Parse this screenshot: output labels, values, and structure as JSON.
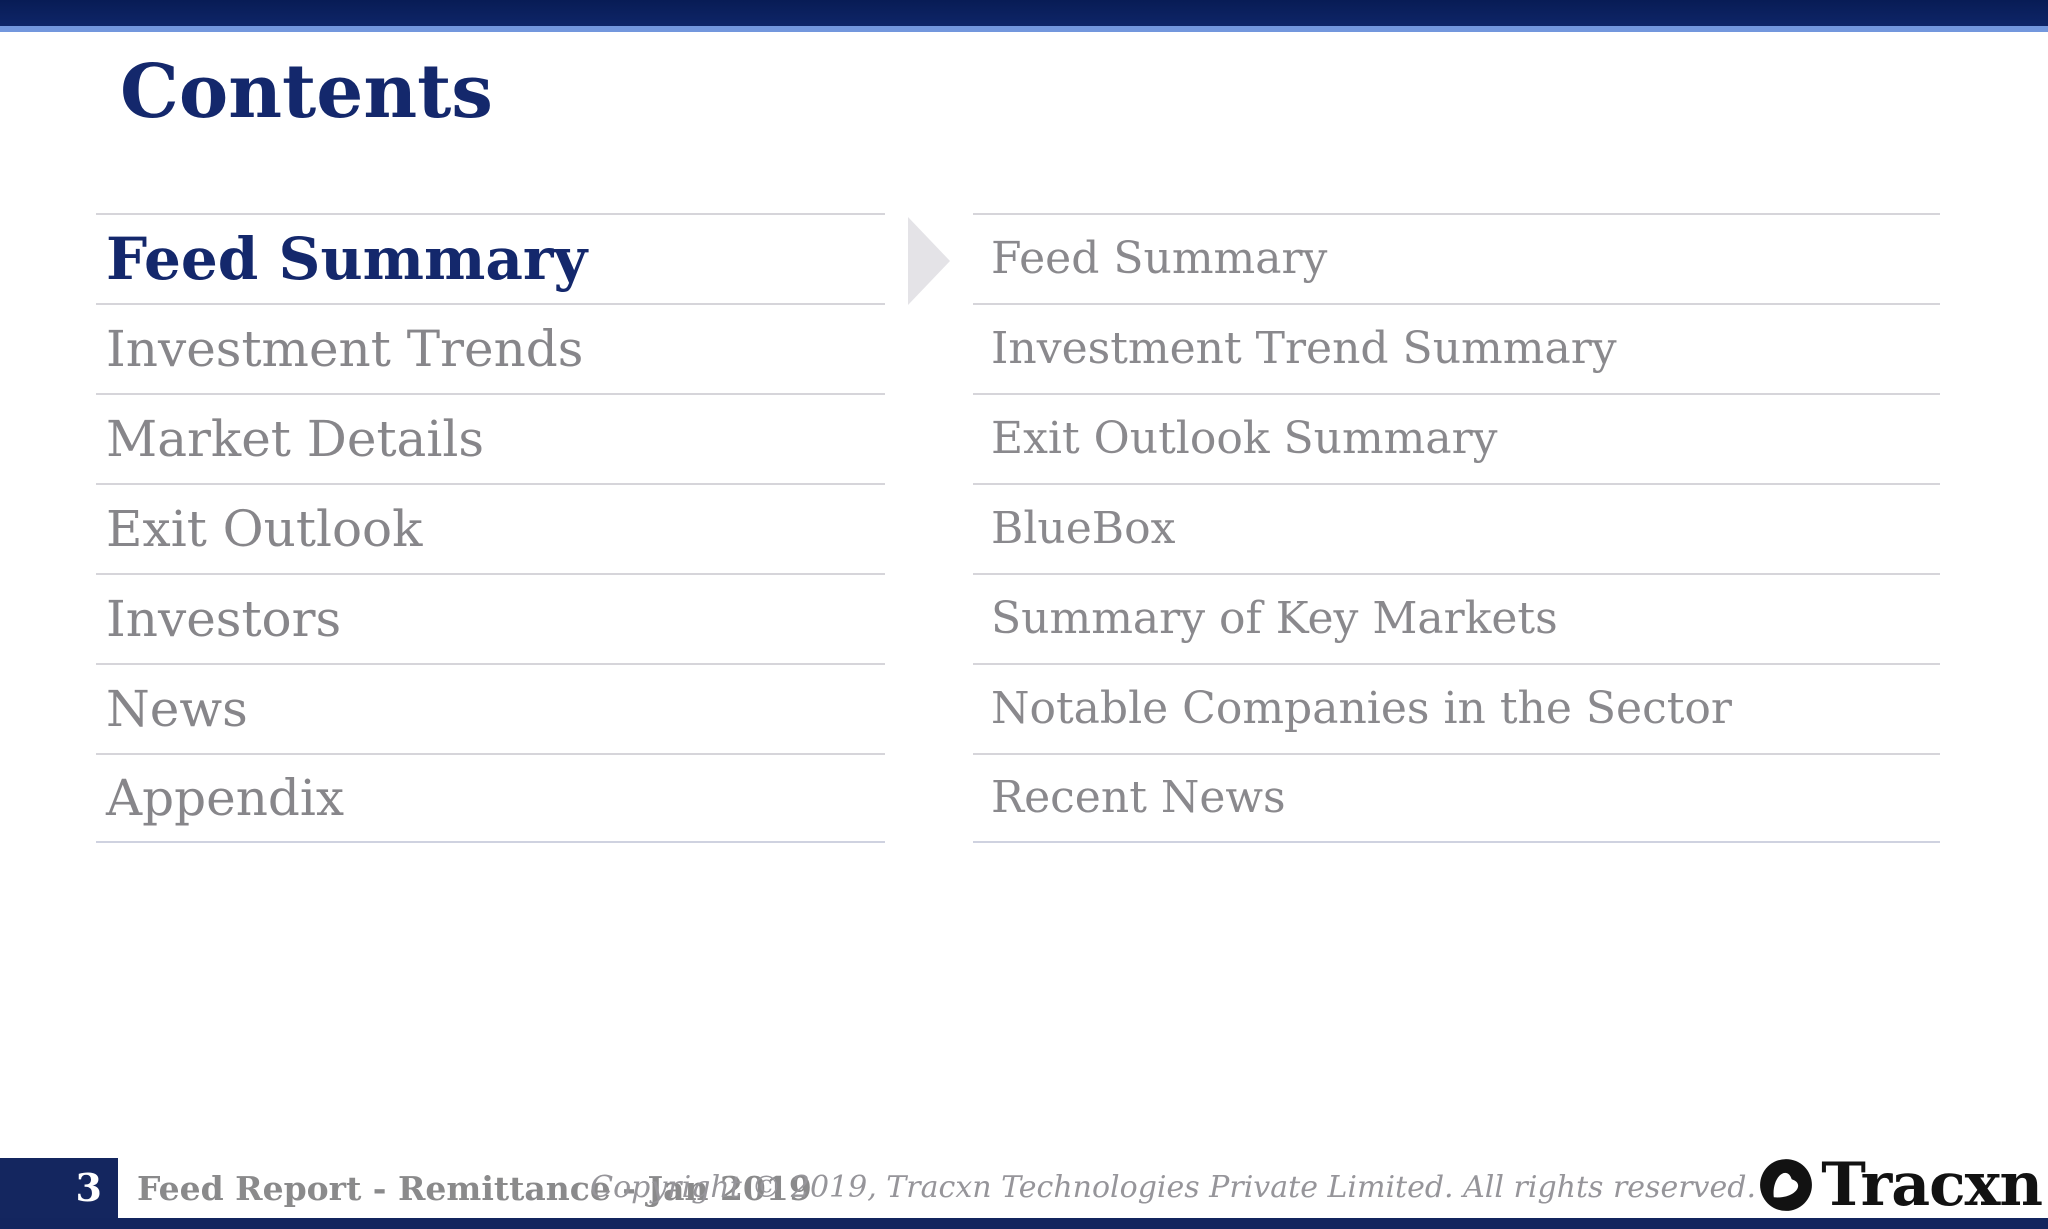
{
  "slide": {
    "title": "Contents",
    "page_number": "3",
    "report_title": "Feed Report - Remittance - Jan 2019",
    "copyright": "Copyright © 2019, Tracxn Technologies Private Limited. All rights reserved.",
    "logo_text": "Tracxn"
  },
  "toc": {
    "sections": [
      {
        "label": "Feed Summary",
        "active": true
      },
      {
        "label": "Investment Trends",
        "active": false
      },
      {
        "label": "Market Details",
        "active": false
      },
      {
        "label": "Exit Outlook",
        "active": false
      },
      {
        "label": "Investors",
        "active": false
      },
      {
        "label": "News",
        "active": false
      },
      {
        "label": "Appendix",
        "active": false
      }
    ],
    "subsections": [
      {
        "label": "Feed Summary"
      },
      {
        "label": "Investment Trend Summary"
      },
      {
        "label": "Exit Outlook Summary"
      },
      {
        "label": "BlueBox"
      },
      {
        "label": "Summary of Key Markets"
      },
      {
        "label": "Notable Companies in the Sector"
      },
      {
        "label": "Recent News"
      }
    ]
  },
  "colors": {
    "navy": "#13255e",
    "accent_line": "#7397dd",
    "active_text": "#14286c",
    "muted_text": "#87868a",
    "divider": "#d6d5da",
    "arrow": "#e4e3e7",
    "logo_black": "#121212"
  }
}
